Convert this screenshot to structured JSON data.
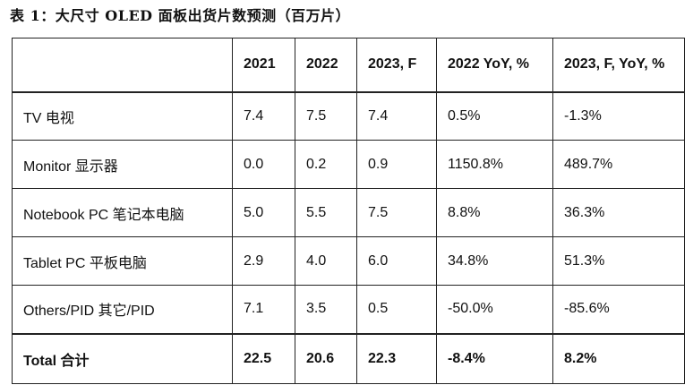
{
  "caption": "表 1：大尺寸 OLED 面板出货片数预测（百万片）",
  "table": {
    "headers": [
      "",
      "2021",
      "2022",
      "2023, F",
      "2022 YoY, %",
      "2023, F, YoY, %"
    ],
    "rows": [
      [
        "TV 电视",
        "7.4",
        "7.5",
        "7.4",
        "0.5%",
        "-1.3%"
      ],
      [
        "Monitor 显示器",
        "0.0",
        "0.2",
        "0.9",
        "1150.8%",
        "489.7%"
      ],
      [
        "Notebook PC 笔记本电脑",
        "5.0",
        "5.5",
        "7.5",
        "8.8%",
        "36.3%"
      ],
      [
        "Tablet PC 平板电脑",
        "2.9",
        "4.0",
        "6.0",
        "34.8%",
        "51.3%"
      ],
      [
        "Others/PID 其它/PID",
        "7.1",
        "3.5",
        "0.5",
        "-50.0%",
        "-85.6%"
      ]
    ],
    "total": [
      "Total  合计",
      "22.5",
      "20.6",
      "22.3",
      "-8.4%",
      "8.2%"
    ]
  }
}
